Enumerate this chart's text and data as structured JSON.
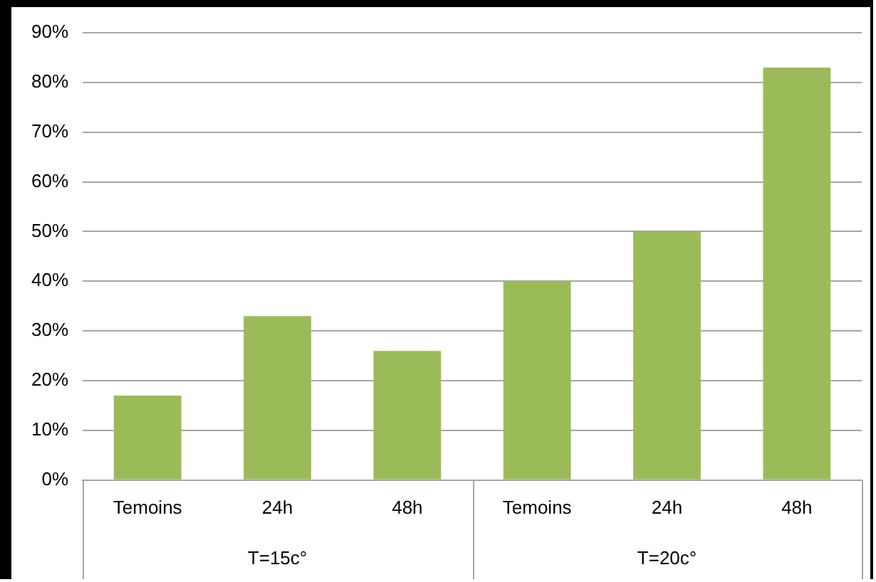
{
  "chart_data": {
    "type": "bar",
    "categories": [
      "Temoins",
      "24h",
      "48h",
      "Temoins",
      "24h",
      "48h"
    ],
    "values": [
      17,
      33,
      26,
      40,
      50,
      83
    ],
    "color": "#9bbb59",
    "ylim": [
      0,
      90
    ],
    "yticks": [
      {
        "value": 0,
        "label": "0%"
      },
      {
        "value": 10,
        "label": "10%"
      },
      {
        "value": 20,
        "label": "20%"
      },
      {
        "value": 30,
        "label": "30%"
      },
      {
        "value": 40,
        "label": "40%"
      },
      {
        "value": 50,
        "label": "50%"
      },
      {
        "value": 60,
        "label": "60%"
      },
      {
        "value": 70,
        "label": "70%"
      },
      {
        "value": 80,
        "label": "80%"
      },
      {
        "value": 90,
        "label": "90%"
      }
    ],
    "grid": "y",
    "legend": false,
    "annotations": [
      "T=15c°",
      "T=20c°"
    ]
  }
}
